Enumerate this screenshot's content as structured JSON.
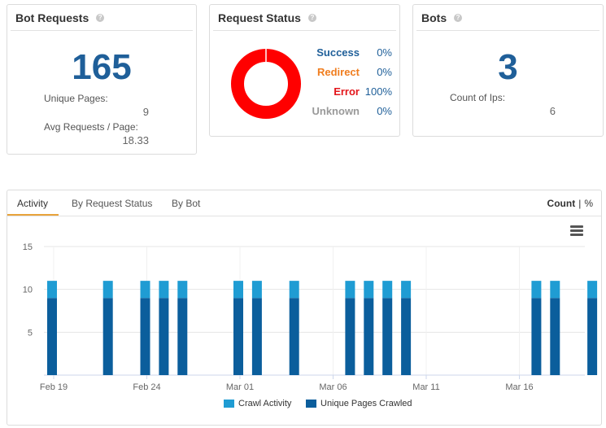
{
  "bot_requests": {
    "title": "Bot Requests",
    "total": "165",
    "unique_pages_label": "Unique Pages:",
    "unique_pages_value": "9",
    "avg_label": "Avg Requests / Page:",
    "avg_value": "18.33"
  },
  "request_status": {
    "title": "Request Status",
    "rows": [
      {
        "label": "Success",
        "value": "0%",
        "color": "#1f5f99"
      },
      {
        "label": "Redirect",
        "value": "0%",
        "color": "#f07d1e"
      },
      {
        "label": "Error",
        "value": "100%",
        "color": "#e3161b"
      },
      {
        "label": "Unknown",
        "value": "0%",
        "color": "#9a9a9a"
      }
    ],
    "donut_color": "#ff0000"
  },
  "bots": {
    "title": "Bots",
    "total": "3",
    "count_label": "Count of Ips:",
    "count_value": "6"
  },
  "activity_panel": {
    "tabs": [
      "Activity",
      "By Request Status",
      "By Bot"
    ],
    "active_tab": "Activity",
    "toggle_count": "Count",
    "toggle_sep": "|",
    "toggle_pct": "%"
  },
  "chart_data": {
    "type": "bar",
    "stacked": true,
    "x_tick_labels": [
      "Feb 19",
      "Feb 24",
      "Mar 01",
      "Mar 06",
      "Mar 11",
      "Mar 16"
    ],
    "categories": [
      "Feb 19",
      "Feb 22",
      "Feb 24",
      "Feb 25",
      "Feb 26",
      "Mar 01",
      "Mar 02",
      "Mar 04",
      "Mar 07",
      "Mar 08",
      "Mar 09",
      "Mar 10",
      "Mar 17",
      "Mar 18",
      "Mar 20"
    ],
    "series": [
      {
        "name": "Unique Pages Crawled",
        "values": [
          9,
          9,
          9,
          9,
          9,
          9,
          9,
          9,
          9,
          9,
          9,
          9,
          9,
          9,
          9
        ],
        "color": "#0b5e9c"
      },
      {
        "name": "Crawl Activity",
        "values": [
          2,
          2,
          2,
          2,
          2,
          2,
          2,
          2,
          2,
          2,
          2,
          2,
          2,
          2,
          2
        ],
        "color": "#1f9cd3"
      }
    ],
    "ylim": [
      0,
      15
    ],
    "y_ticks": [
      5,
      10,
      15
    ],
    "grid": true,
    "legend_position": "bottom-center"
  }
}
